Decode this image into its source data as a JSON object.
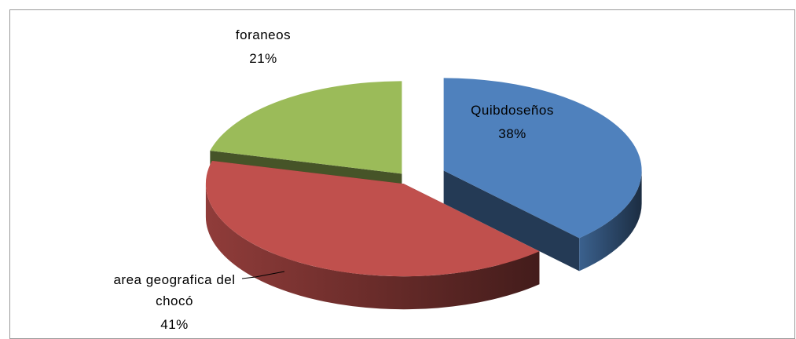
{
  "chart_data": {
    "type": "pie",
    "style": "3d-exploded",
    "categories": [
      "Quibdoseños",
      "area geografica del chocó",
      "foraneos"
    ],
    "values": [
      38,
      41,
      21
    ],
    "value_labels": [
      "38%",
      "41%",
      "21%"
    ],
    "colors": [
      "#4f81bd",
      "#c0504d",
      "#9bbb59"
    ]
  }
}
